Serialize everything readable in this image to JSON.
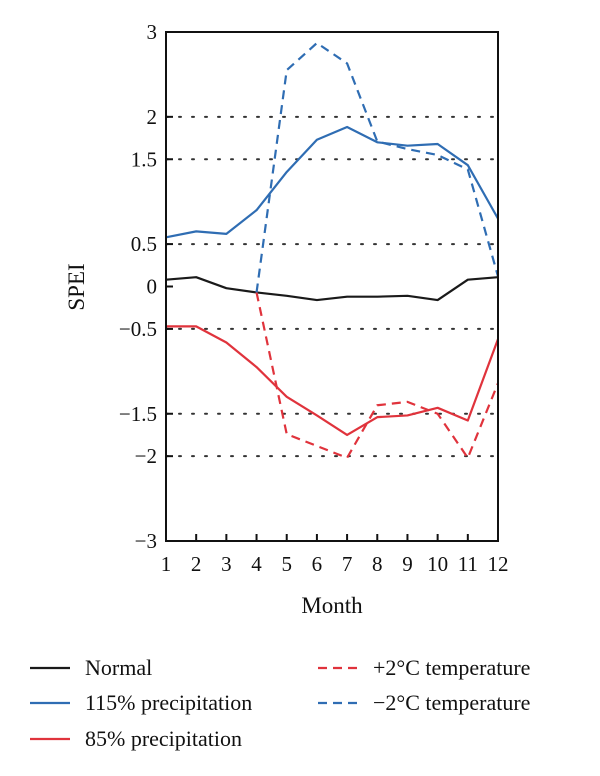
{
  "chart_data": {
    "type": "line",
    "title": "",
    "xlabel": "Month",
    "ylabel": "SPEI",
    "x": [
      1,
      2,
      3,
      4,
      5,
      6,
      7,
      8,
      9,
      10,
      11,
      12
    ],
    "xlim": [
      1,
      12
    ],
    "ylim": [
      -3,
      3
    ],
    "x_tick_labels": [
      "1",
      "2",
      "3",
      "4",
      "5",
      "6",
      "7",
      "8",
      "9",
      "10",
      "11",
      "12"
    ],
    "y_ticks": [
      3,
      2,
      1.5,
      0.5,
      0,
      -0.5,
      -1.5,
      -2,
      -3
    ],
    "y_tick_labels": [
      "3",
      "2",
      "1.5",
      "0.5",
      "0",
      "−0.5",
      "−1.5",
      "−2",
      "−3"
    ],
    "grid": "dotted horizontal lines at ±0.5, ±1.5, ±2",
    "gridlines": [
      2,
      1.5,
      0.5,
      -0.5,
      -1.5,
      -2
    ],
    "legend_position": "bottom",
    "series": [
      {
        "name": "Normal",
        "color": "#1a1a1a",
        "style": "solid",
        "values": [
          0.08,
          0.11,
          -0.02,
          -0.07,
          -0.11,
          -0.16,
          -0.12,
          -0.12,
          -0.11,
          -0.16,
          0.08,
          0.11
        ]
      },
      {
        "name": "115% precipitation",
        "color": "#2f6db3",
        "style": "solid",
        "values": [
          0.58,
          0.65,
          0.62,
          0.9,
          1.35,
          1.73,
          1.88,
          1.7,
          1.66,
          1.68,
          1.43,
          0.8
        ]
      },
      {
        "name": "85% precipitation",
        "color": "#e0333c",
        "style": "solid",
        "values": [
          -0.47,
          -0.47,
          -0.66,
          -0.95,
          -1.3,
          -1.52,
          -1.75,
          -1.54,
          -1.52,
          -1.43,
          -1.58,
          -0.62
        ]
      },
      {
        "name": "+2°C temperature",
        "color": "#e0333c",
        "style": "dashed",
        "values": [
          null,
          null,
          null,
          -0.07,
          -1.74,
          -1.88,
          -2.02,
          -1.4,
          -1.36,
          -1.5,
          -2.02,
          -1.14
        ]
      },
      {
        "name": "−2°C temperature",
        "color": "#2f6db3",
        "style": "dashed",
        "values": [
          null,
          null,
          null,
          -0.07,
          2.55,
          2.87,
          2.63,
          1.71,
          1.62,
          1.55,
          1.38,
          0.12
        ]
      }
    ]
  }
}
